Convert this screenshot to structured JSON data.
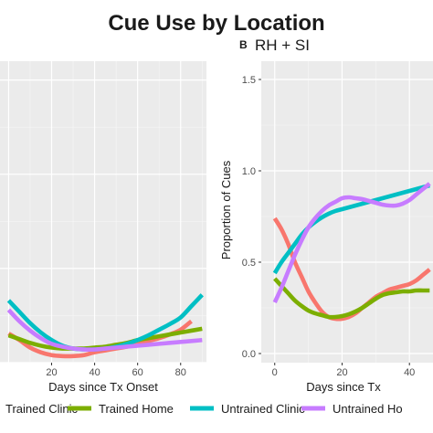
{
  "title": "Cue Use by Location",
  "chart_data": [
    {
      "type": "line",
      "panel_letter": "",
      "panel_title": "",
      "xlabel": "Days since Tx Onset",
      "ylabel": "",
      "xlim": [
        -4,
        92
      ],
      "ylim": [
        0,
        1.6
      ],
      "x_ticks": [
        20,
        40,
        60,
        80
      ],
      "x_tick_labels": [
        "20",
        "40",
        "60",
        "80"
      ],
      "y_ticks": [
        0,
        0.5,
        1.0,
        1.5
      ],
      "y_tick_labels": [
        "",
        "",
        "",
        ""
      ],
      "grid": true,
      "series": [
        {
          "name": "Trained Clinic",
          "color": "#f8766d",
          "x": [
            0,
            5,
            10,
            15,
            20,
            25,
            30,
            35,
            40,
            45,
            50,
            55,
            60,
            65,
            70,
            75,
            80,
            85
          ],
          "y": [
            0.155,
            0.12,
            0.08,
            0.055,
            0.04,
            0.035,
            0.035,
            0.04,
            0.055,
            0.065,
            0.075,
            0.085,
            0.1,
            0.115,
            0.13,
            0.15,
            0.175,
            0.22
          ]
        },
        {
          "name": "Trained Home",
          "color": "#7cae00",
          "x": [
            0,
            5,
            10,
            15,
            20,
            25,
            30,
            35,
            40,
            45,
            50,
            55,
            60,
            65,
            70,
            75,
            80,
            85,
            90
          ],
          "y": [
            0.145,
            0.125,
            0.105,
            0.09,
            0.08,
            0.075,
            0.075,
            0.075,
            0.08,
            0.085,
            0.095,
            0.105,
            0.12,
            0.13,
            0.14,
            0.15,
            0.16,
            0.17,
            0.18
          ]
        },
        {
          "name": "Untrained Clinic",
          "color": "#00bfc4",
          "x": [
            0,
            5,
            10,
            15,
            20,
            25,
            30,
            35,
            40,
            45,
            50,
            55,
            60,
            65,
            70,
            75,
            80,
            85,
            90
          ],
          "y": [
            0.33,
            0.27,
            0.21,
            0.16,
            0.12,
            0.09,
            0.075,
            0.07,
            0.07,
            0.075,
            0.085,
            0.1,
            0.12,
            0.145,
            0.175,
            0.205,
            0.24,
            0.3,
            0.36
          ]
        },
        {
          "name": "Untrained Home",
          "color": "#c77cff",
          "x": [
            0,
            5,
            10,
            15,
            20,
            25,
            30,
            35,
            40,
            45,
            50,
            55,
            60,
            65,
            70,
            75,
            80,
            85,
            90
          ],
          "y": [
            0.28,
            0.22,
            0.17,
            0.13,
            0.1,
            0.085,
            0.075,
            0.07,
            0.07,
            0.075,
            0.08,
            0.085,
            0.09,
            0.095,
            0.1,
            0.105,
            0.11,
            0.115,
            0.12
          ]
        }
      ]
    },
    {
      "type": "line",
      "panel_letter": "B",
      "panel_title": "RH + SI",
      "xlabel": "Days since Tx",
      "ylabel": "Proportion of Cues",
      "xlim": [
        -4,
        47
      ],
      "ylim": [
        -0.05,
        1.6
      ],
      "x_ticks": [
        0,
        20,
        40
      ],
      "x_tick_labels": [
        "0",
        "20",
        "40"
      ],
      "y_ticks": [
        0,
        0.5,
        1.0,
        1.5
      ],
      "y_tick_labels": [
        "0.0",
        "0.5",
        "1.0",
        "1.5"
      ],
      "grid": true,
      "series": [
        {
          "name": "Trained Clinic",
          "color": "#f8766d",
          "x": [
            0,
            2,
            4,
            6,
            8,
            10,
            12,
            14,
            16,
            18,
            20,
            22,
            24,
            26,
            28,
            30,
            32,
            34,
            36,
            38,
            40,
            42,
            44,
            46
          ],
          "y": [
            0.74,
            0.68,
            0.6,
            0.5,
            0.42,
            0.34,
            0.28,
            0.23,
            0.2,
            0.19,
            0.19,
            0.2,
            0.22,
            0.25,
            0.28,
            0.31,
            0.33,
            0.35,
            0.36,
            0.37,
            0.38,
            0.4,
            0.43,
            0.46
          ]
        },
        {
          "name": "Trained Home",
          "color": "#7cae00",
          "x": [
            0,
            2,
            4,
            6,
            8,
            10,
            12,
            14,
            16,
            18,
            20,
            22,
            24,
            26,
            28,
            30,
            32,
            34,
            36,
            38,
            40,
            42,
            44,
            46
          ],
          "y": [
            0.41,
            0.37,
            0.33,
            0.29,
            0.26,
            0.235,
            0.22,
            0.21,
            0.2,
            0.2,
            0.205,
            0.215,
            0.23,
            0.25,
            0.275,
            0.3,
            0.32,
            0.33,
            0.335,
            0.34,
            0.34,
            0.345,
            0.345,
            0.345
          ]
        },
        {
          "name": "Untrained Clinic",
          "color": "#00bfc4",
          "x": [
            0,
            2,
            4,
            6,
            8,
            10,
            12,
            14,
            16,
            18,
            20,
            22,
            24,
            26,
            28,
            30,
            32,
            34,
            36,
            38,
            40,
            42,
            44,
            46
          ],
          "y": [
            0.44,
            0.5,
            0.55,
            0.6,
            0.65,
            0.69,
            0.72,
            0.745,
            0.765,
            0.78,
            0.79,
            0.8,
            0.81,
            0.82,
            0.83,
            0.84,
            0.85,
            0.86,
            0.87,
            0.88,
            0.89,
            0.9,
            0.91,
            0.92
          ]
        },
        {
          "name": "Untrained Home",
          "color": "#c77cff",
          "x": [
            0,
            2,
            4,
            6,
            8,
            10,
            12,
            14,
            16,
            18,
            20,
            22,
            24,
            26,
            28,
            30,
            32,
            34,
            36,
            38,
            40,
            42,
            44,
            46
          ],
          "y": [
            0.28,
            0.36,
            0.45,
            0.54,
            0.62,
            0.69,
            0.74,
            0.78,
            0.81,
            0.83,
            0.85,
            0.855,
            0.85,
            0.845,
            0.835,
            0.825,
            0.815,
            0.81,
            0.81,
            0.82,
            0.84,
            0.87,
            0.9,
            0.93
          ]
        }
      ]
    }
  ],
  "legend": {
    "items": [
      {
        "label": "Trained Clinic",
        "color": "#f8766d"
      },
      {
        "label": "Trained Home",
        "color": "#7cae00"
      },
      {
        "label": "Untrained Clinic",
        "color": "#00bfc4"
      },
      {
        "label": "Untrained Ho",
        "color": "#c77cff"
      }
    ]
  }
}
